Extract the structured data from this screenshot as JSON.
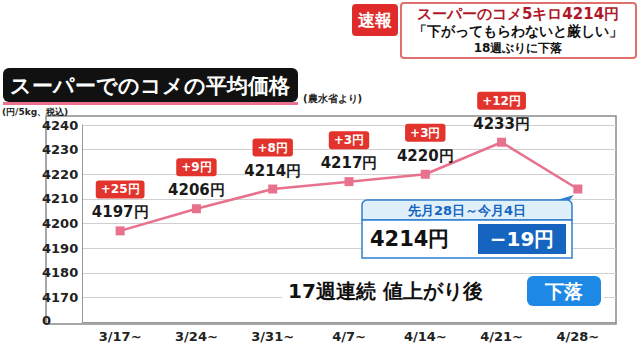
{
  "chart_data": {
    "type": "line",
    "title": "スーパーでのコメの平均価格",
    "subtitle": "(農水省より)",
    "y_label": "(円/5kg、税込)",
    "categories": [
      "3/17~",
      "3/24~",
      "3/31~",
      "4/7~",
      "4/14~",
      "4/21~",
      "4/28~"
    ],
    "values": [
      4197,
      4206,
      4214,
      4217,
      4220,
      4233,
      4214
    ],
    "value_labels": [
      "4197円",
      "4206円",
      "4214円",
      "4217円",
      "4220円",
      "4233円",
      "4214円"
    ],
    "change_labels": [
      "+25円",
      "+9円",
      "+8円",
      "+3円",
      "+3円",
      "+12円",
      "−19円"
    ],
    "color": "#e8718d",
    "marker": "square",
    "ylim": [
      4160,
      4240
    ],
    "yticks": [
      4170,
      4180,
      4190,
      4200,
      4210,
      4220,
      4230,
      4240
    ],
    "grid": true,
    "data_labels": true,
    "axis_break_label": "0",
    "callout": {
      "category": "4/28~",
      "period": "先月28日～今月4日"
    },
    "banner": {
      "text": "17週連続 値上がり後",
      "badge": "下落"
    }
  },
  "header": {
    "badge": "速報",
    "headline": "スーパーのコメ5キロ4214円",
    "quote": "「下がってもらわないと厳しい」",
    "note": "18週ぶりに下落"
  }
}
